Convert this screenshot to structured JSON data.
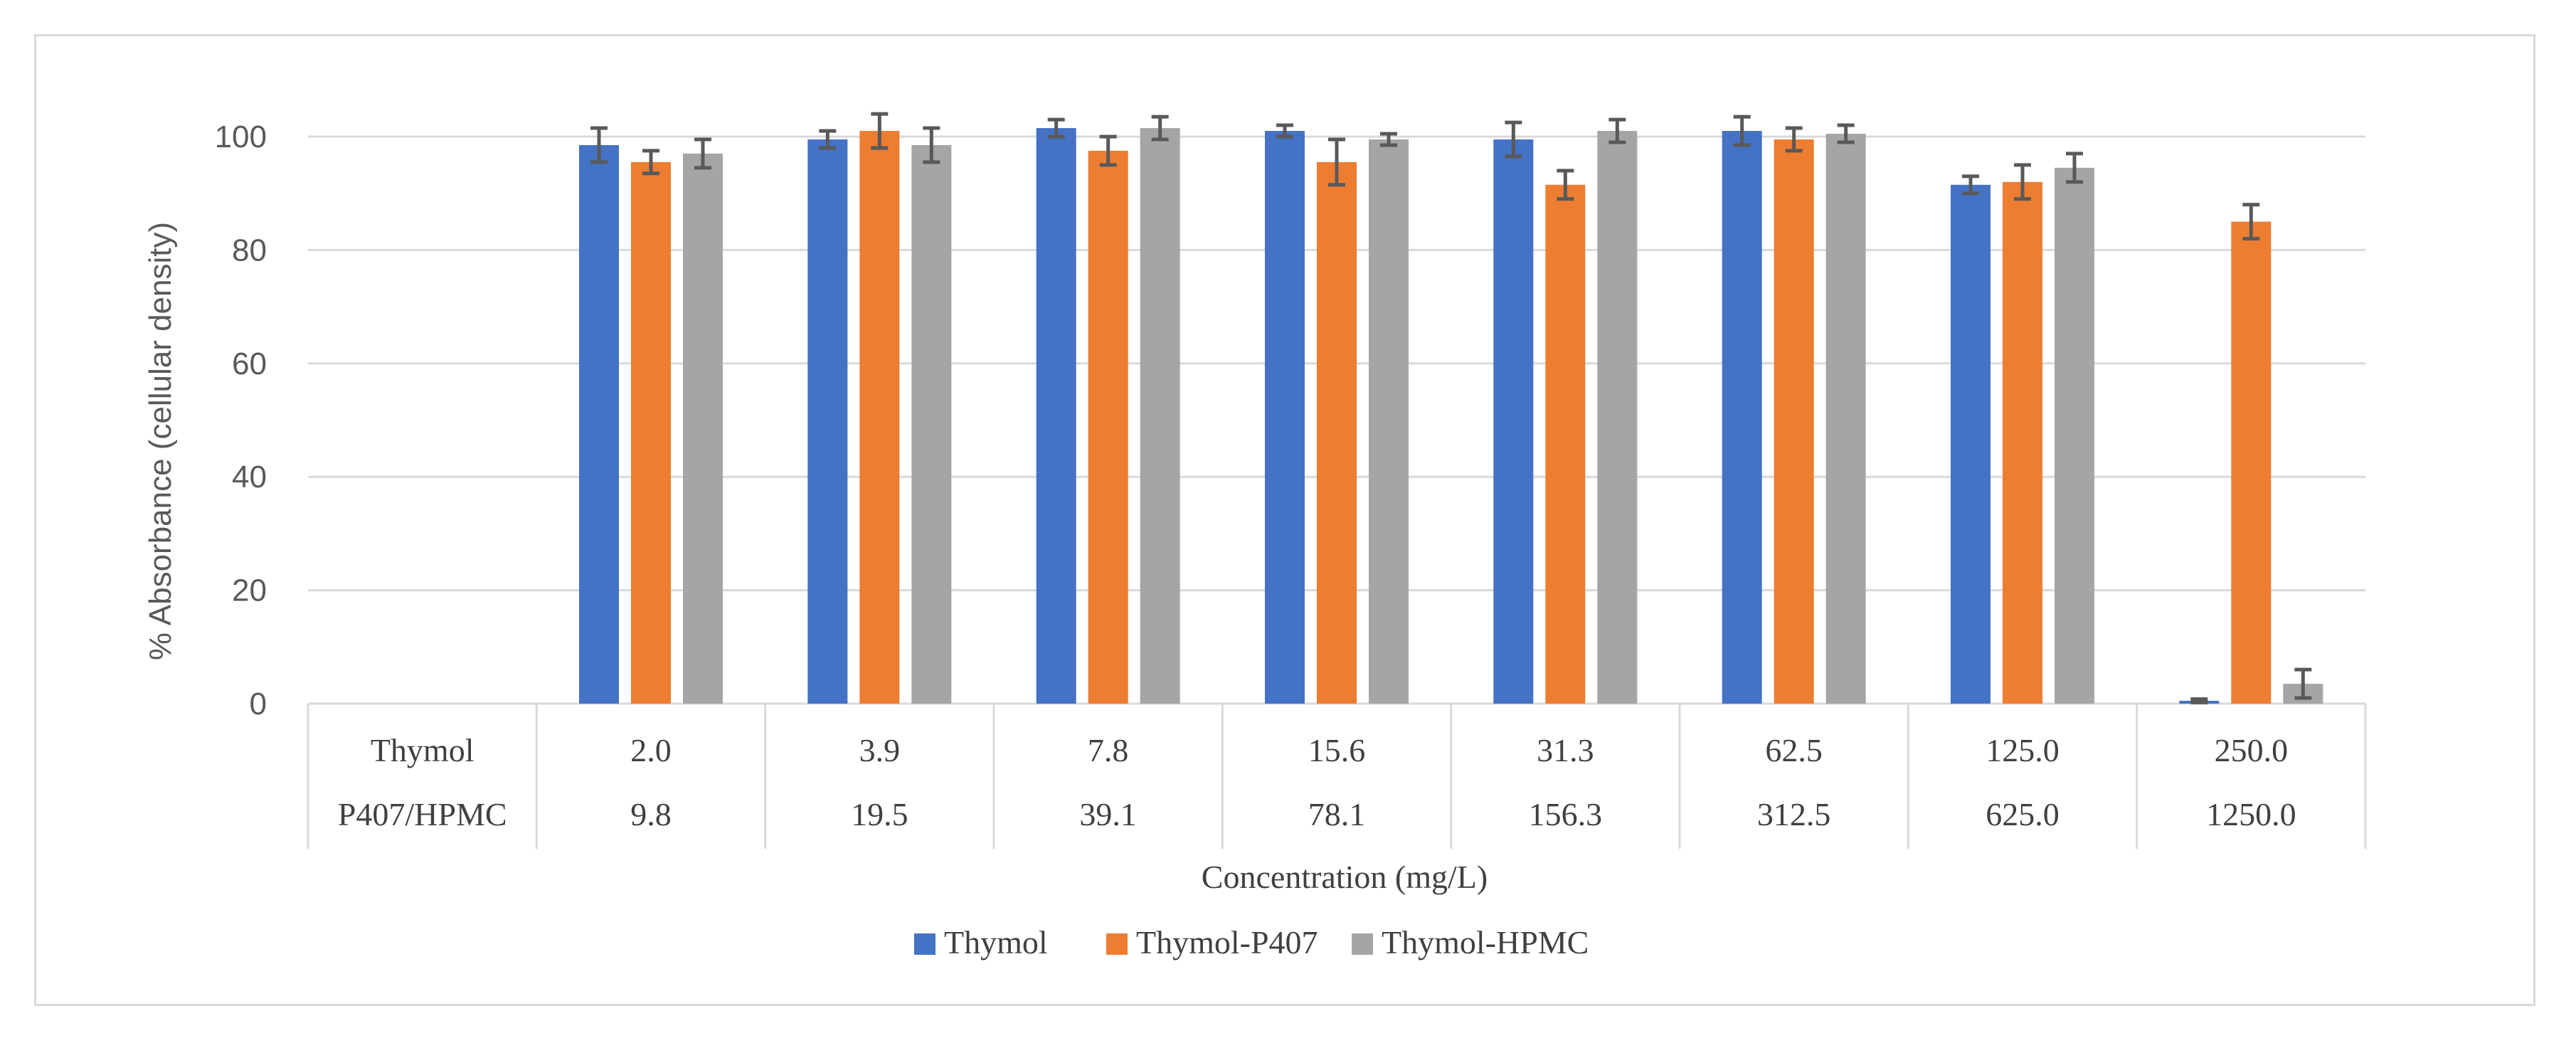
{
  "chart_data": {
    "type": "bar",
    "title": "",
    "ylabel": "% Absorbance (cellular density)",
    "xlabel": "Concentration (mg/L)",
    "ylim": [
      0,
      110
    ],
    "yticks": [
      0,
      20,
      40,
      60,
      80,
      100
    ],
    "grid": true,
    "legend_position": "bottom",
    "table_rows": [
      {
        "label": "Thymol",
        "values": [
          "2.0",
          "3.9",
          "7.8",
          "15.6",
          "31.3",
          "62.5",
          "125.0",
          "250.0"
        ]
      },
      {
        "label": "P407/HPMC",
        "values": [
          "9.8",
          "19.5",
          "39.1",
          "78.1",
          "156.3",
          "312.5",
          "625.0",
          "1250.0"
        ]
      }
    ],
    "series": [
      {
        "name": "Thymol",
        "color": "#4472c4",
        "values": [
          null,
          98.5,
          99.5,
          101.5,
          101.0,
          99.5,
          101.0,
          91.5,
          0.5
        ],
        "errors": [
          null,
          3.0,
          1.5,
          1.5,
          1.0,
          3.0,
          2.5,
          1.5,
          0.3
        ]
      },
      {
        "name": "Thymol-P407",
        "color": "#ed7d31",
        "values": [
          null,
          95.5,
          101.0,
          97.5,
          95.5,
          91.5,
          99.5,
          92.0,
          85.0
        ],
        "errors": [
          null,
          2.0,
          3.0,
          2.5,
          4.0,
          2.5,
          2.0,
          3.0,
          3.0
        ]
      },
      {
        "name": "Thymol-HPMC",
        "color": "#a5a5a5",
        "values": [
          null,
          97.0,
          98.5,
          101.5,
          99.5,
          101.0,
          100.5,
          94.5,
          3.5
        ],
        "errors": [
          null,
          2.5,
          3.0,
          2.0,
          1.0,
          2.0,
          1.5,
          2.5,
          2.5
        ]
      }
    ]
  }
}
